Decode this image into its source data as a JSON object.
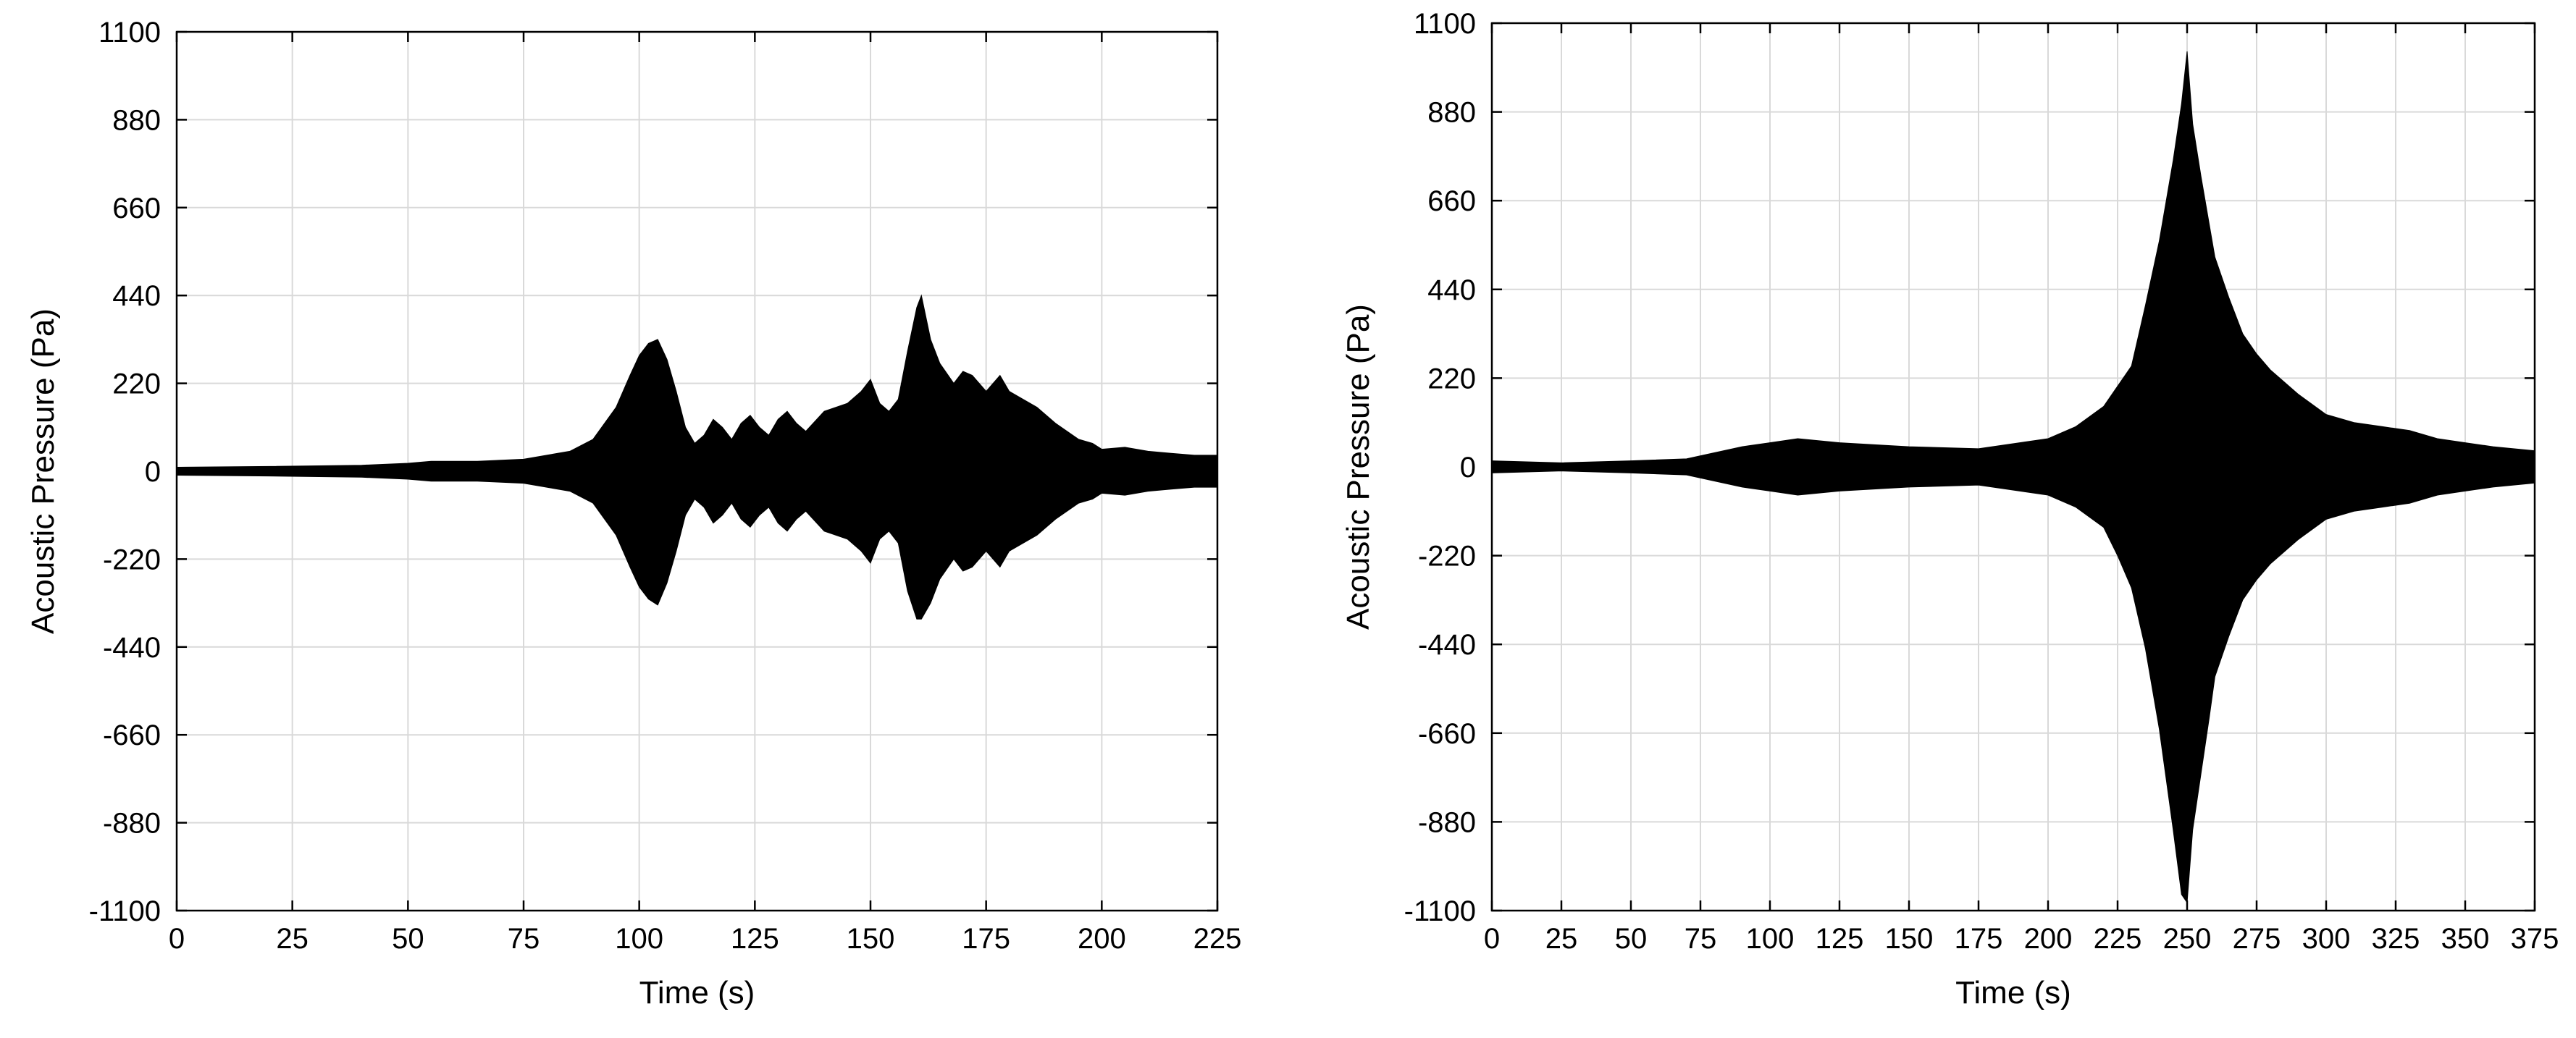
{
  "chart_data": [
    {
      "type": "line",
      "xlabel": "Time (s)",
      "ylabel": "Acoustic Pressure (Pa)",
      "xlim": [
        0,
        225
      ],
      "ylim": [
        -1100,
        1100
      ],
      "xticks": [
        0,
        25,
        50,
        75,
        100,
        125,
        150,
        175,
        200,
        225
      ],
      "yticks": [
        1100,
        880,
        660,
        440,
        220,
        0,
        -220,
        -440,
        -660,
        -880,
        -1100
      ],
      "grid": true,
      "series": [
        {
          "color": "#000000",
          "x": [
            0,
            20,
            40,
            50,
            55,
            65,
            75,
            85,
            90,
            95,
            98,
            100,
            102,
            104,
            106,
            108,
            110,
            112,
            114,
            116,
            118,
            120,
            122,
            124,
            126,
            128,
            130,
            132,
            134,
            136,
            140,
            145,
            148,
            150,
            152,
            154,
            156,
            158,
            160,
            161,
            163,
            165,
            168,
            170,
            172,
            175,
            178,
            180,
            183,
            186,
            190,
            195,
            198,
            200,
            205,
            210,
            215,
            220,
            225
          ],
          "upper": [
            10,
            12,
            15,
            20,
            25,
            25,
            30,
            50,
            80,
            160,
            240,
            290,
            320,
            330,
            280,
            200,
            110,
            70,
            90,
            130,
            110,
            80,
            120,
            140,
            110,
            90,
            130,
            150,
            120,
            100,
            150,
            170,
            200,
            230,
            170,
            150,
            180,
            300,
            410,
            440,
            330,
            270,
            220,
            250,
            240,
            200,
            240,
            200,
            180,
            160,
            120,
            80,
            70,
            55,
            60,
            50,
            45,
            40,
            40
          ],
          "lower": [
            -10,
            -12,
            -15,
            -20,
            -25,
            -25,
            -30,
            -50,
            -80,
            -160,
            -240,
            -290,
            -320,
            -335,
            -280,
            -200,
            -110,
            -70,
            -90,
            -130,
            -110,
            -80,
            -120,
            -140,
            -110,
            -90,
            -130,
            -150,
            -120,
            -100,
            -150,
            -170,
            -200,
            -230,
            -170,
            -150,
            -180,
            -300,
            -370,
            -370,
            -330,
            -270,
            -220,
            -250,
            -240,
            -200,
            -240,
            -200,
            -180,
            -160,
            -120,
            -80,
            -70,
            -55,
            -60,
            -50,
            -45,
            -40,
            -40
          ]
        }
      ]
    },
    {
      "type": "line",
      "xlabel": "Time (s)",
      "ylabel": "Acoustic Pressure (Pa)",
      "xlim": [
        0,
        375
      ],
      "ylim": [
        -1100,
        1100
      ],
      "xticks": [
        0,
        25,
        50,
        75,
        100,
        125,
        150,
        175,
        200,
        225,
        250,
        275,
        300,
        325,
        350,
        375
      ],
      "yticks": [
        1100,
        880,
        660,
        440,
        220,
        0,
        -220,
        -440,
        -660,
        -880,
        -1100
      ],
      "grid": true,
      "series": [
        {
          "color": "#000000",
          "x": [
            0,
            25,
            50,
            70,
            80,
            90,
            100,
            110,
            125,
            150,
            175,
            200,
            210,
            220,
            225,
            230,
            235,
            240,
            245,
            248,
            250,
            252,
            255,
            258,
            260,
            265,
            270,
            275,
            280,
            290,
            300,
            310,
            320,
            330,
            340,
            350,
            360,
            375
          ],
          "upper": [
            15,
            10,
            15,
            20,
            35,
            50,
            60,
            70,
            60,
            50,
            45,
            70,
            100,
            150,
            200,
            250,
            400,
            560,
            760,
            900,
            1030,
            850,
            720,
            600,
            520,
            420,
            330,
            280,
            240,
            180,
            130,
            110,
            100,
            90,
            70,
            60,
            50,
            40
          ],
          "lower": [
            -15,
            -10,
            -15,
            -20,
            -35,
            -50,
            -60,
            -70,
            -60,
            -50,
            -45,
            -70,
            -100,
            -150,
            -220,
            -300,
            -450,
            -650,
            -900,
            -1060,
            -1080,
            -900,
            -760,
            -620,
            -520,
            -420,
            -330,
            -280,
            -240,
            -180,
            -130,
            -110,
            -100,
            -90,
            -70,
            -60,
            -50,
            -40
          ]
        }
      ]
    }
  ]
}
